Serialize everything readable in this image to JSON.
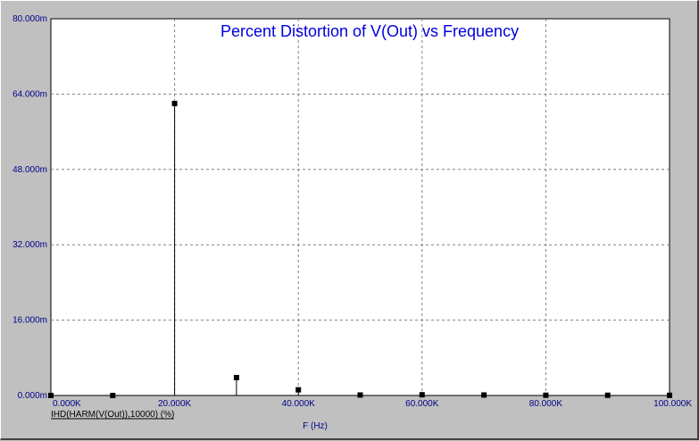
{
  "chart_data": {
    "type": "bar",
    "title": "Percent Distortion of V(Out) vs Frequency",
    "xlabel": "F (Hz)",
    "ylabel": "",
    "series_label": "IHD(HARM(V(Out)),10000) (%)",
    "xlim": [
      0,
      100000
    ],
    "ylim": [
      0,
      0.08
    ],
    "x_ticks": [
      "0.000K",
      "20.000K",
      "40.000K",
      "60.000K",
      "80.000K",
      "100.000K"
    ],
    "y_ticks": [
      "0.000m",
      "16.000m",
      "32.000m",
      "48.000m",
      "64.000m",
      "80.000m"
    ],
    "grid": true,
    "x": [
      0,
      10000,
      20000,
      30000,
      40000,
      50000,
      60000,
      70000,
      80000,
      90000,
      100000
    ],
    "values": [
      0,
      0,
      0.062,
      0.0038,
      0.0012,
      0.0001,
      0.00015,
      0.0001,
      5e-05,
      5e-05,
      3e-05
    ],
    "colors": {
      "background": "#c0c0c0",
      "plot": "#ffffff",
      "text": "#00008b",
      "title": "#0000dd",
      "marker": "#000000",
      "grid": "#808080"
    }
  }
}
